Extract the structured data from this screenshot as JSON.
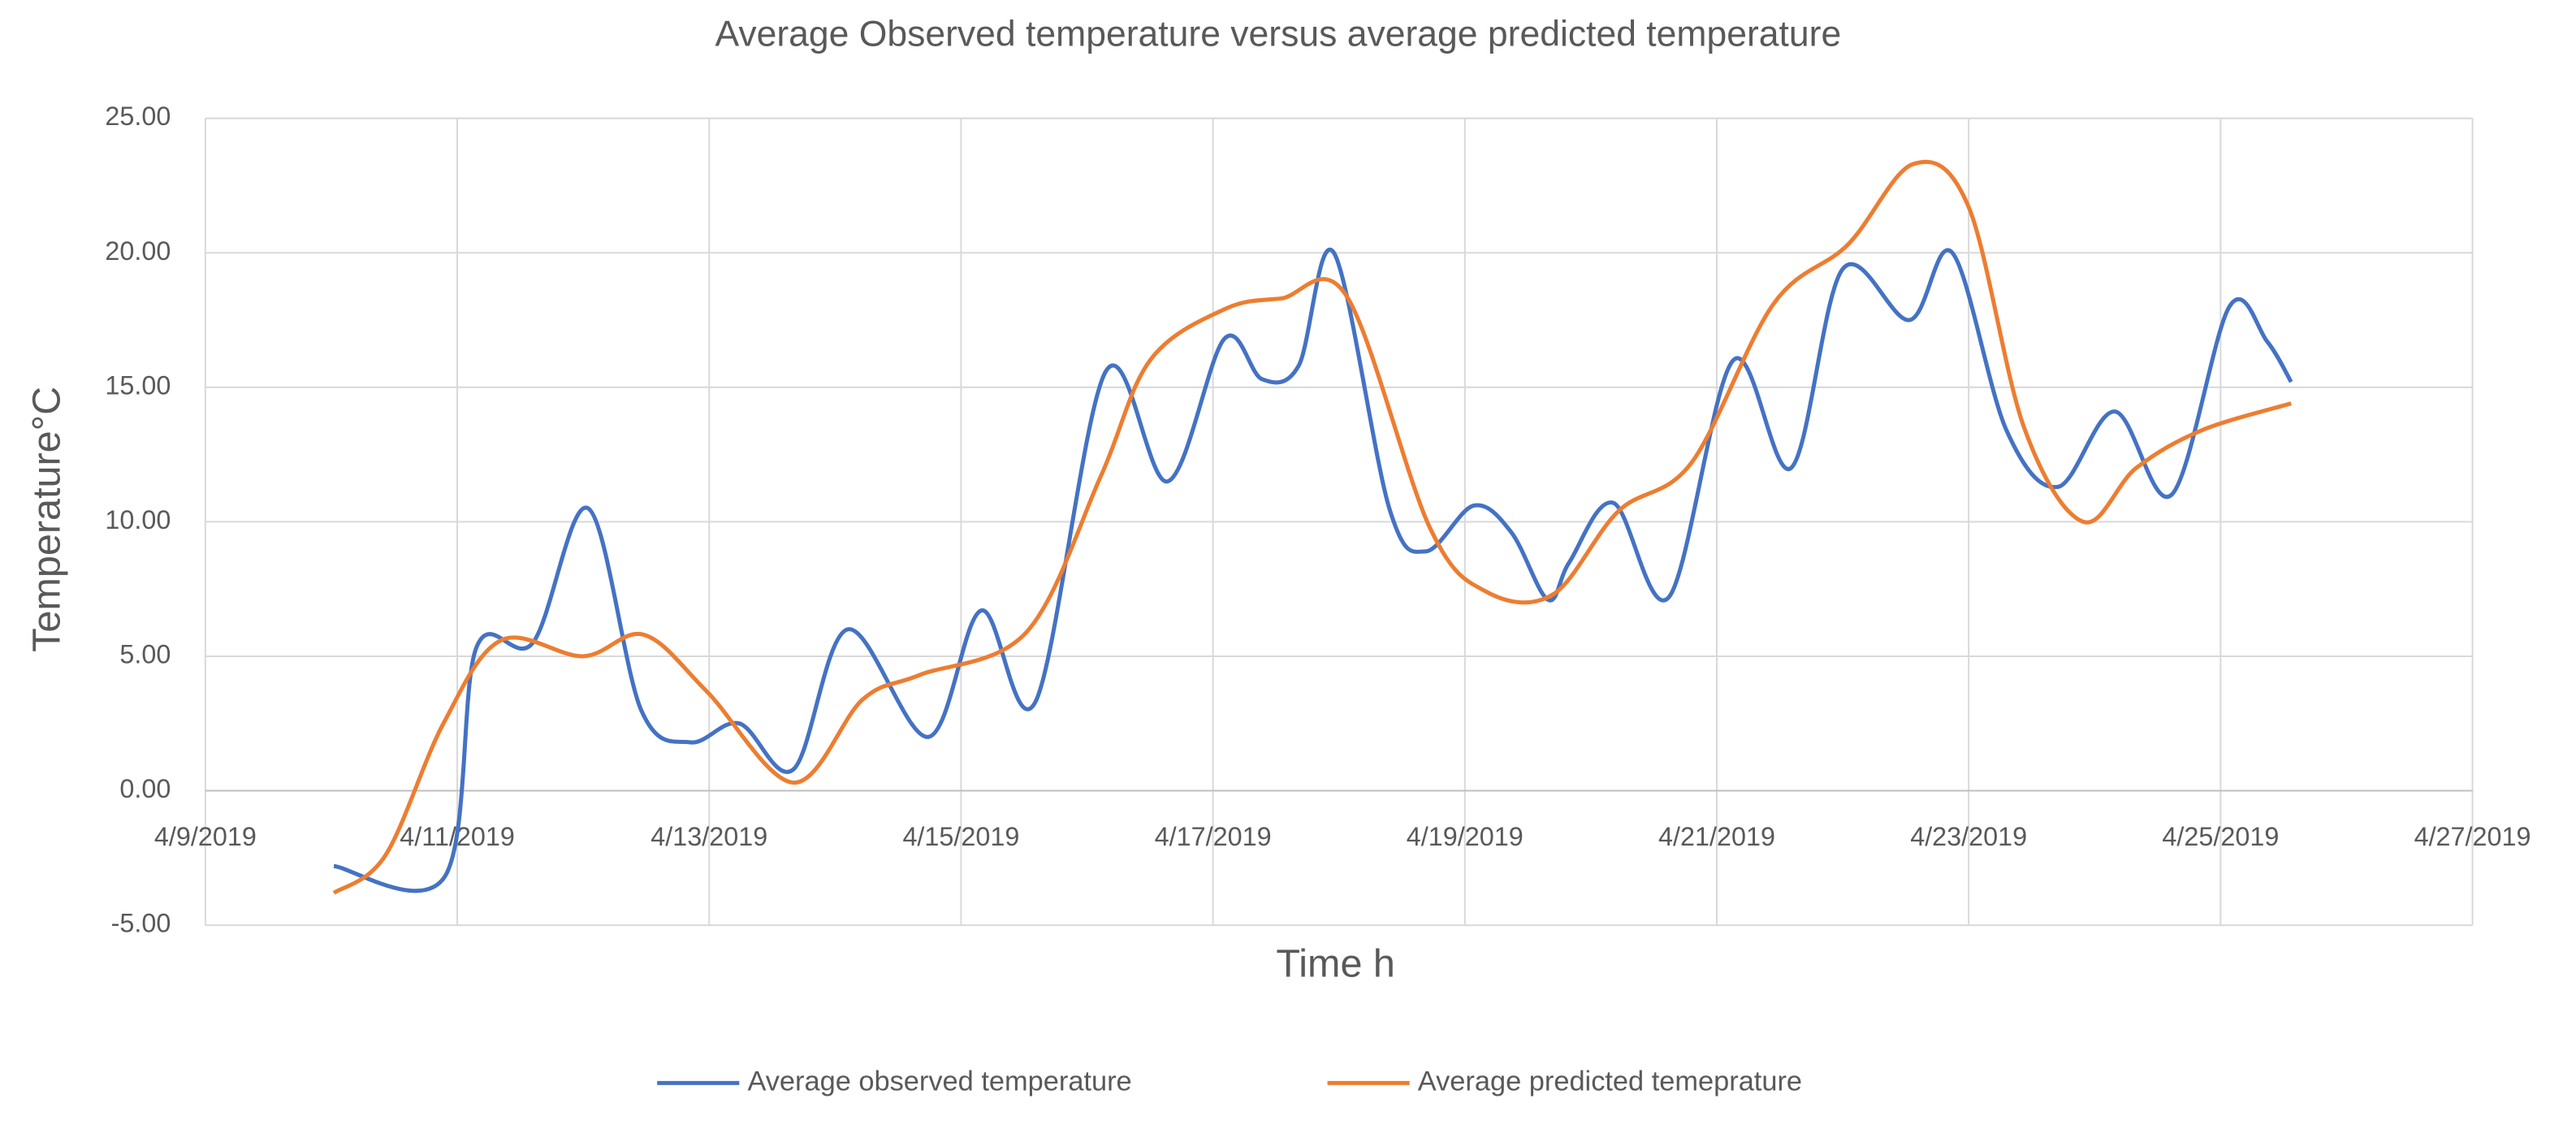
{
  "chart_data": {
    "type": "line",
    "title": "Average Observed temperature versus average predicted temperature",
    "x_label": "Time h",
    "y_label": "Temperature°C",
    "xlim": [
      43564,
      43582
    ],
    "xticks": [
      {
        "value": 43564,
        "label": "4/9/2019"
      },
      {
        "value": 43566,
        "label": "4/11/2019"
      },
      {
        "value": 43568,
        "label": "4/13/2019"
      },
      {
        "value": 43570,
        "label": "4/15/2019"
      },
      {
        "value": 43572,
        "label": "4/17/2019"
      },
      {
        "value": 43574,
        "label": "4/19/2019"
      },
      {
        "value": 43576,
        "label": "4/21/2019"
      },
      {
        "value": 43578,
        "label": "4/23/2019"
      },
      {
        "value": 43580,
        "label": "4/25/2019"
      },
      {
        "value": 43582,
        "label": "4/27/2019"
      }
    ],
    "ylim": [
      -5,
      25
    ],
    "yticks": [
      {
        "value": -5,
        "label": "-5.00"
      },
      {
        "value": 0,
        "label": "0.00"
      },
      {
        "value": 5,
        "label": "5.00"
      },
      {
        "value": 10,
        "label": "10.00"
      },
      {
        "value": 15,
        "label": "15.00"
      },
      {
        "value": 20,
        "label": "20.00"
      },
      {
        "value": 25,
        "label": "25.00"
      }
    ],
    "grid": true,
    "smooth": true,
    "legend": "bottom",
    "series": [
      {
        "name": "Average observed temperature",
        "color": "#4472c4",
        "x": [
          43565.02,
          43565.9,
          43566.15,
          43566.6,
          43567.04,
          43567.46,
          43567.85,
          43568.24,
          43568.67,
          43569.1,
          43569.74,
          43570.16,
          43570.59,
          43571.15,
          43571.64,
          43572.09,
          43572.39,
          43572.68,
          43572.96,
          43573.4,
          43573.69,
          43574.07,
          43574.37,
          43574.66,
          43574.83,
          43575.18,
          43575.62,
          43576.13,
          43576.59,
          43577.0,
          43577.53,
          43577.87,
          43578.3,
          43578.71,
          43579.16,
          43579.61,
          43580.07,
          43580.37,
          43580.56
        ],
        "values": [
          -2.8,
          -3.2,
          5.3,
          5.5,
          10.5,
          3.0,
          1.8,
          2.5,
          0.8,
          6.0,
          2.0,
          6.7,
          3.3,
          15.6,
          11.5,
          16.8,
          15.3,
          15.8,
          20.0,
          10.5,
          8.9,
          10.6,
          9.6,
          7.1,
          8.5,
          10.7,
          7.2,
          16.0,
          12.0,
          19.4,
          17.5,
          20.0,
          13.4,
          11.3,
          14.1,
          11.0,
          18.0,
          16.7,
          15.2
        ]
      },
      {
        "name": "Average predicted temeprature",
        "color": "#ed7d31",
        "x": [
          43565.02,
          43565.43,
          43565.89,
          43566.35,
          43567.0,
          43567.48,
          43567.98,
          43568.67,
          43569.22,
          43569.67,
          43570.52,
          43571.11,
          43571.5,
          43572.09,
          43572.54,
          43573.06,
          43573.72,
          43574.17,
          43574.7,
          43575.22,
          43575.8,
          43576.45,
          43577.04,
          43577.56,
          43578.0,
          43578.44,
          43578.91,
          43579.33,
          43579.85,
          43580.56
        ],
        "values": [
          -3.8,
          -2.4,
          2.5,
          5.6,
          5.0,
          5.8,
          3.7,
          0.3,
          3.4,
          4.3,
          5.9,
          11.7,
          16.0,
          17.9,
          18.3,
          18.4,
          9.8,
          7.4,
          7.3,
          10.4,
          12.2,
          18.1,
          20.3,
          23.3,
          21.7,
          13.5,
          10.0,
          12.0,
          13.4,
          14.4
        ]
      }
    ]
  }
}
